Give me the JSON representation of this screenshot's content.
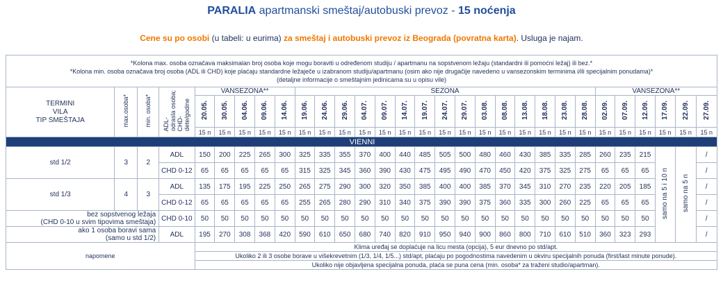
{
  "title": {
    "strong": "PARALIA",
    "middle": " apartmanski smeštaj/autobuski prevoz - ",
    "nights": "15 noćenja"
  },
  "subtitle": {
    "part1": "Cene su po osobi",
    "part2": " (u tabeli: u eurima) ",
    "part3": "za smeštaj i autobuski prevoz iz Beograda (povratna karta)",
    "part4": ". Usluga je najam."
  },
  "notes": [
    "*Kolona max. osoba označava maksimalan broj osoba koje mogu boraviti u određenom studiju / apartmanu na sopstvenom ležaju (standardni ili pomoćni ležaj) ili bez.*",
    "*Kolona min. osoba označava broj osoba (ADL ili CHD) koje plaćaju standardne ležaječe u izabranom studiju/apartmanu (osim ako nije drugačije navedeno u vansezonskim terminima i/ili specijalnim ponudama)*",
    "(detaljne informacije o smeštajnim jedinicama su u opisu vile)"
  ],
  "header": {
    "termini": "TERMINI",
    "vila": "VILA",
    "tip": "TIP SMEŠTAJA",
    "max": "max.osoba*",
    "min": "min. osoba*",
    "adl": "ADL-",
    "adl2": "odrasla osoba;",
    "chd": "CHD-",
    "chd2": "dete/godine",
    "seasons": [
      "VANSEZONA**",
      "SEZONA",
      "VANSEZONA**"
    ],
    "dates": [
      "20.05.",
      "30.05.",
      "04.06.",
      "09.06.",
      "14.06.",
      "19.06.",
      "24.06.",
      "29.06.",
      "04.07.",
      "09.07.",
      "14.07.",
      "19.07.",
      "24.07.",
      "29.07.",
      "03.08.",
      "08.08.",
      "13.08.",
      "18.08.",
      "23.08.",
      "28.08.",
      "02.09.",
      "07.09.",
      "12.09.",
      "17.09.",
      "22.09.",
      "27.09."
    ],
    "nights_label": "15 n"
  },
  "vila_name": "VIENNI",
  "rows": {
    "std12": {
      "name": "std 1/2",
      "max": "3",
      "min": "2",
      "adl": {
        "label": "ADL",
        "values": [
          "150",
          "200",
          "225",
          "265",
          "300",
          "325",
          "335",
          "355",
          "370",
          "400",
          "440",
          "485",
          "505",
          "500",
          "480",
          "460",
          "430",
          "385",
          "335",
          "285",
          "260",
          "235",
          "215"
        ],
        "last": "/"
      },
      "chd": {
        "label": "CHD 0-12",
        "values": [
          "65",
          "65",
          "65",
          "65",
          "65",
          "315",
          "325",
          "345",
          "360",
          "390",
          "430",
          "475",
          "495",
          "490",
          "470",
          "450",
          "420",
          "375",
          "325",
          "275",
          "65",
          "65",
          "65"
        ],
        "last": "/"
      }
    },
    "std13": {
      "name": "std 1/3",
      "max": "4",
      "min": "3",
      "adl": {
        "label": "ADL",
        "values": [
          "135",
          "175",
          "195",
          "225",
          "250",
          "265",
          "275",
          "290",
          "300",
          "320",
          "350",
          "385",
          "400",
          "400",
          "385",
          "370",
          "345",
          "310",
          "270",
          "235",
          "220",
          "205",
          "185"
        ],
        "last": "/"
      },
      "chd": {
        "label": "CHD 0-12",
        "values": [
          "65",
          "65",
          "65",
          "65",
          "65",
          "255",
          "265",
          "280",
          "290",
          "310",
          "340",
          "375",
          "390",
          "390",
          "375",
          "360",
          "335",
          "300",
          "260",
          "225",
          "65",
          "65",
          "65"
        ],
        "last": "/"
      }
    },
    "bez": {
      "name1": "bez sopstvenog ležaja",
      "name2": "(CHD 0-10 u svim tipovima smeštaja)",
      "label": "CHD 0-10",
      "values": [
        "50",
        "50",
        "50",
        "50",
        "50",
        "50",
        "50",
        "50",
        "50",
        "50",
        "50",
        "50",
        "50",
        "50",
        "50",
        "50",
        "50",
        "50",
        "50",
        "50",
        "50",
        "50",
        "50"
      ],
      "last": "/"
    },
    "sama": {
      "name1": "ako 1 osoba boravi sama",
      "name2": "(samo u std 1/2)",
      "label": "ADL",
      "values": [
        "195",
        "270",
        "308",
        "368",
        "420",
        "590",
        "610",
        "650",
        "680",
        "740",
        "820",
        "910",
        "950",
        "940",
        "900",
        "860",
        "800",
        "710",
        "610",
        "510",
        "360",
        "323",
        "293"
      ],
      "last": "/"
    }
  },
  "vertical_notes": {
    "col1": "samo na 5 i 10 n",
    "col2": "samo na 5 n"
  },
  "footer": {
    "label": "napomene",
    "lines": [
      "Klima uređaj se doplaćuje na licu mesta (opcija), 5 eur dnevno po std/apt.",
      "Ukoliko 2 ili 3 osobe borave u višekrevetnim (1/3, 1/4, 1/5...) std/apt, plaćaju po pogodnostima navedenim u okviru specijalnih ponuda (first/last minute ponude).",
      "Ukoliko nije objavljena specijalna ponuda, plaća se puna cena (min. osoba* za traženi studio/apartman)."
    ]
  },
  "colors": {
    "title": "#1f4e9b",
    "orange": "#f07800",
    "vila_bar": "#1e3e78",
    "border": "#a8b4c8"
  }
}
